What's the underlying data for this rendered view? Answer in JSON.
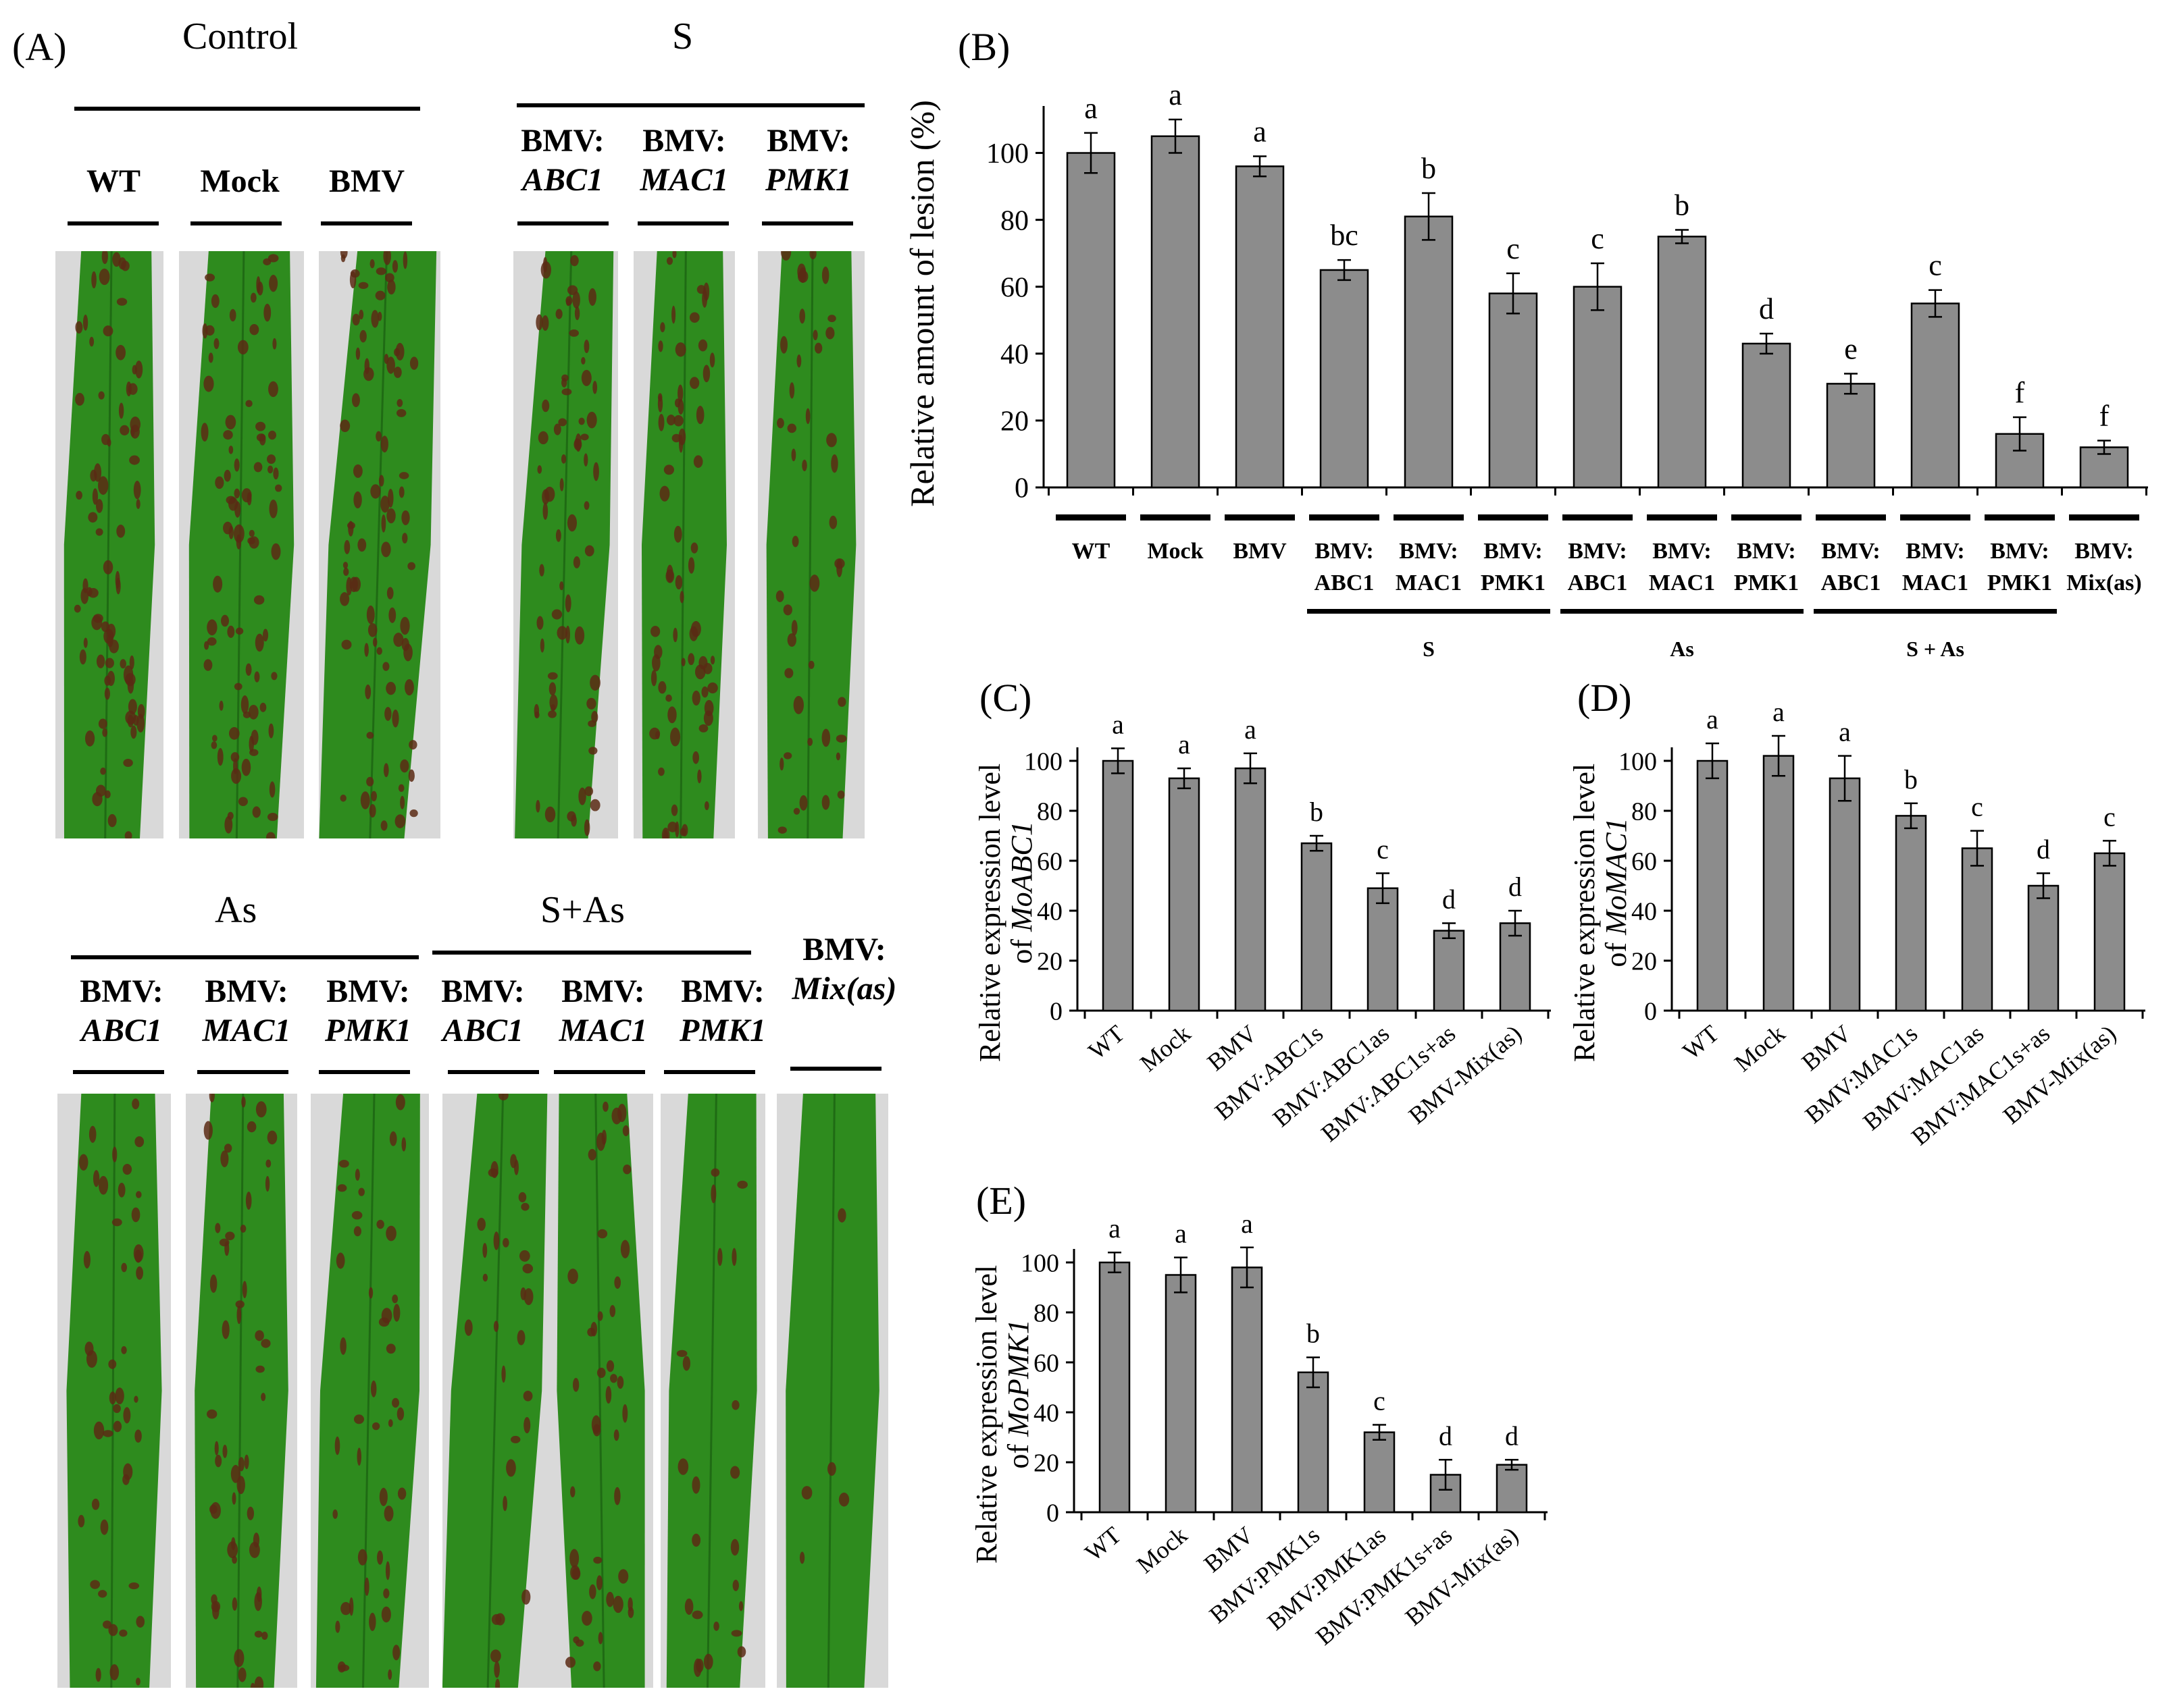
{
  "panels": {
    "A": {
      "letter": "(A)",
      "groups": {
        "control": {
          "title": "Control",
          "labels": [
            "WT",
            "Mock",
            "BMV"
          ]
        },
        "s": {
          "title": "S",
          "prefix": "BMV:",
          "labels": [
            "ABC1",
            "MAC1",
            "PMK1"
          ]
        },
        "as": {
          "title": "As",
          "prefix": "BMV:",
          "labels": [
            "ABC1",
            "MAC1",
            "PMK1"
          ]
        },
        "sas": {
          "title": "S+As",
          "prefix": "BMV:",
          "labels": [
            "ABC1",
            "MAC1",
            "PMK1"
          ]
        },
        "mix": {
          "prefix": "BMV:",
          "label": "Mix(as)"
        }
      }
    },
    "B": {
      "letter": "(B)",
      "group_labels": [
        "S",
        "As",
        "S + As"
      ]
    },
    "C": {
      "letter": "(C)"
    },
    "D": {
      "letter": "(D)"
    },
    "E": {
      "letter": "(E)"
    }
  },
  "colors": {
    "bar": "#8c8c8c",
    "leaf": "#2e8b1e",
    "lesion": "#5a2a14",
    "background": "#d9d9d9"
  },
  "chart_data": [
    {
      "id": "B",
      "type": "bar",
      "ylabel": "Relative amount of lesion (%)",
      "ylim": [
        0,
        110
      ],
      "yticks": [
        0,
        20,
        40,
        60,
        80,
        100
      ],
      "categories": [
        [
          "WT"
        ],
        [
          "Mock"
        ],
        [
          "BMV"
        ],
        [
          "BMV:",
          "ABC1"
        ],
        [
          "BMV:",
          "MAC1"
        ],
        [
          "BMV:",
          "PMK1"
        ],
        [
          "BMV:",
          "ABC1"
        ],
        [
          "BMV:",
          "MAC1"
        ],
        [
          "BMV:",
          "PMK1"
        ],
        [
          "BMV:",
          "ABC1"
        ],
        [
          "BMV:",
          "MAC1"
        ],
        [
          "BMV:",
          "PMK1"
        ],
        [
          "BMV:",
          "Mix(as)"
        ]
      ],
      "values": [
        100,
        105,
        96,
        65,
        81,
        58,
        60,
        75,
        43,
        31,
        55,
        16,
        12
      ],
      "errors": [
        6,
        5,
        3,
        3,
        7,
        6,
        7,
        2,
        3,
        3,
        4,
        5,
        2
      ],
      "letters": [
        "a",
        "a",
        "a",
        "bc",
        "b",
        "c",
        "c",
        "b",
        "d",
        "e",
        "c",
        "f",
        "f"
      ]
    },
    {
      "id": "C",
      "type": "bar",
      "ylabel_line1": "Relative expression level",
      "ylabel_line2_prefix": "of ",
      "ylabel_line2_gene": "MoABC1",
      "ylim": [
        0,
        100
      ],
      "yticks": [
        0,
        20,
        40,
        60,
        80,
        100
      ],
      "categories": [
        "WT",
        "Mock",
        "BMV",
        "BMV:ABC1s",
        "BMV:ABC1as",
        "BMV:ABC1s+as",
        "BMV-Mix(as)"
      ],
      "values": [
        100,
        93,
        97,
        67,
        49,
        32,
        35
      ],
      "errors": [
        5,
        4,
        6,
        3,
        6,
        3,
        5
      ],
      "letters": [
        "a",
        "a",
        "a",
        "b",
        "c",
        "d",
        "d"
      ]
    },
    {
      "id": "D",
      "type": "bar",
      "ylabel_line1": "Relative expression level",
      "ylabel_line2_prefix": "of ",
      "ylabel_line2_gene": "MoMAC1",
      "ylim": [
        0,
        100
      ],
      "yticks": [
        0,
        20,
        40,
        60,
        80,
        100
      ],
      "categories": [
        "WT",
        "Mock",
        "BMV",
        "BMV:MAC1s",
        "BMV:MAC1as",
        "BMV:MAC1s+as",
        "BMV-Mix(as)"
      ],
      "values": [
        100,
        102,
        93,
        78,
        65,
        50,
        63
      ],
      "errors": [
        7,
        8,
        9,
        5,
        7,
        5,
        5
      ],
      "letters": [
        "a",
        "a",
        "a",
        "b",
        "c",
        "d",
        "c"
      ]
    },
    {
      "id": "E",
      "type": "bar",
      "ylabel_line1": "Relative expression level",
      "ylabel_line2_prefix": "of ",
      "ylabel_line2_gene": "MoPMK1",
      "ylim": [
        0,
        100
      ],
      "yticks": [
        0,
        20,
        40,
        60,
        80,
        100
      ],
      "categories": [
        "WT",
        "Mock",
        "BMV",
        "BMV:PMK1s",
        "BMV:PMK1as",
        "BMV:PMK1s+as",
        "BMV-Mix(as)"
      ],
      "values": [
        100,
        95,
        98,
        56,
        32,
        15,
        19
      ],
      "errors": [
        4,
        7,
        8,
        6,
        3,
        6,
        2
      ],
      "letters": [
        "a",
        "a",
        "a",
        "b",
        "c",
        "d",
        "d"
      ]
    }
  ]
}
